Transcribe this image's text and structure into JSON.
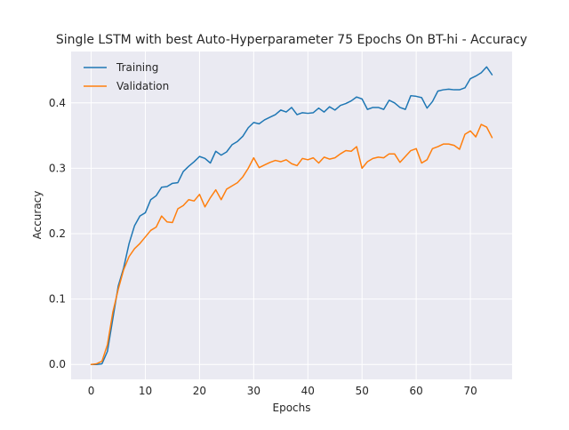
{
  "chart_data": {
    "type": "line",
    "title": "Single LSTM with best Auto-Hyperparameter 75 Epochs On BT-hi - Accuracy",
    "xlabel": "Epochs",
    "ylabel": "Accuracy",
    "xlim": [
      -3.7,
      77.7
    ],
    "ylim": [
      -0.0228,
      0.4785
    ],
    "xticks": [
      0,
      10,
      20,
      30,
      40,
      50,
      60,
      70
    ],
    "yticks": [
      0.0,
      0.1,
      0.2,
      0.3,
      0.4
    ],
    "xtick_labels": [
      "0",
      "10",
      "20",
      "30",
      "40",
      "50",
      "60",
      "70"
    ],
    "ytick_labels": [
      "0.0",
      "0.1",
      "0.2",
      "0.3",
      "0.4"
    ],
    "grid": true,
    "legend_position": "top-left",
    "style": "seaborn-darkgrid",
    "series": [
      {
        "name": "Training",
        "color": "#1f77b4",
        "x": [
          0,
          1,
          2,
          3,
          4,
          5,
          6,
          7,
          8,
          9,
          10,
          11,
          12,
          13,
          14,
          15,
          16,
          17,
          18,
          19,
          20,
          21,
          22,
          23,
          24,
          25,
          26,
          27,
          28,
          29,
          30,
          31,
          32,
          33,
          34,
          35,
          36,
          37,
          38,
          39,
          40,
          41,
          42,
          43,
          44,
          45,
          46,
          47,
          48,
          49,
          50,
          51,
          52,
          53,
          54,
          55,
          56,
          57,
          58,
          59,
          60,
          61,
          62,
          63,
          64,
          65,
          66,
          67,
          68,
          69,
          70,
          71,
          72,
          73,
          74
        ],
        "values": [
          0.0,
          0.0,
          0.001,
          0.02,
          0.07,
          0.12,
          0.148,
          0.185,
          0.212,
          0.227,
          0.232,
          0.252,
          0.258,
          0.271,
          0.272,
          0.277,
          0.278,
          0.295,
          0.303,
          0.31,
          0.318,
          0.315,
          0.308,
          0.326,
          0.32,
          0.325,
          0.336,
          0.341,
          0.349,
          0.362,
          0.37,
          0.368,
          0.374,
          0.378,
          0.382,
          0.389,
          0.386,
          0.393,
          0.382,
          0.385,
          0.384,
          0.385,
          0.392,
          0.386,
          0.394,
          0.389,
          0.396,
          0.399,
          0.403,
          0.409,
          0.406,
          0.39,
          0.393,
          0.393,
          0.39,
          0.404,
          0.4,
          0.393,
          0.39,
          0.411,
          0.41,
          0.408,
          0.392,
          0.402,
          0.418,
          0.42,
          0.421,
          0.42,
          0.42,
          0.423,
          0.437,
          0.441,
          0.446,
          0.455,
          0.443
        ]
      },
      {
        "name": "Validation",
        "color": "#ff7f0e",
        "x": [
          0,
          1,
          2,
          3,
          4,
          5,
          6,
          7,
          8,
          9,
          10,
          11,
          12,
          13,
          14,
          15,
          16,
          17,
          18,
          19,
          20,
          21,
          22,
          23,
          24,
          25,
          26,
          27,
          28,
          29,
          30,
          31,
          32,
          33,
          34,
          35,
          36,
          37,
          38,
          39,
          40,
          41,
          42,
          43,
          44,
          45,
          46,
          47,
          48,
          49,
          50,
          51,
          52,
          53,
          54,
          55,
          56,
          57,
          58,
          59,
          60,
          61,
          62,
          63,
          64,
          65,
          66,
          67,
          68,
          69,
          70,
          71,
          72,
          73,
          74
        ],
        "values": [
          0.0,
          0.001,
          0.005,
          0.03,
          0.08,
          0.115,
          0.145,
          0.165,
          0.177,
          0.185,
          0.195,
          0.205,
          0.21,
          0.227,
          0.218,
          0.217,
          0.238,
          0.243,
          0.252,
          0.25,
          0.26,
          0.241,
          0.255,
          0.267,
          0.252,
          0.268,
          0.273,
          0.278,
          0.287,
          0.3,
          0.316,
          0.301,
          0.305,
          0.309,
          0.312,
          0.31,
          0.313,
          0.307,
          0.304,
          0.315,
          0.313,
          0.316,
          0.308,
          0.317,
          0.314,
          0.316,
          0.322,
          0.327,
          0.326,
          0.333,
          0.3,
          0.31,
          0.315,
          0.317,
          0.316,
          0.322,
          0.322,
          0.309,
          0.318,
          0.327,
          0.33,
          0.308,
          0.313,
          0.33,
          0.333,
          0.337,
          0.337,
          0.335,
          0.329,
          0.352,
          0.357,
          0.348,
          0.367,
          0.363,
          0.347
        ]
      }
    ]
  }
}
